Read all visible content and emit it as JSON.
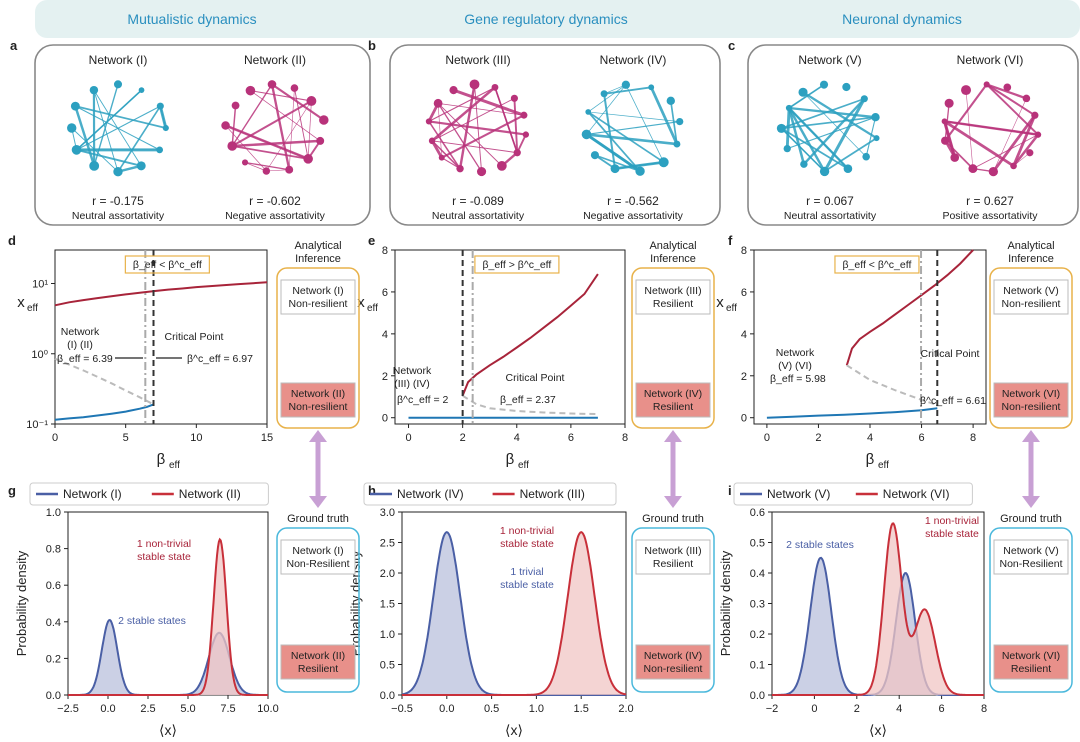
{
  "colors": {
    "teal": "#2ca0c0",
    "magenta": "#b8327a",
    "red": "#a8243a",
    "blue": "#1f77b4",
    "kdeBlue": "#4a5fa5",
    "kdeRed": "#c8303a",
    "gold": "#e8b24a",
    "sky": "#4ab8dc",
    "arrow": "#c8a0d4",
    "banner": "#e4f1f1",
    "bannerText": "#2a8fbf",
    "pink": "#e8908a",
    "dash": "#333333",
    "gray": "#aaaaaa"
  },
  "column_headers": [
    "Mutualistic dynamics",
    "Gene regulatory dynamics",
    "Neuronal dynamics"
  ],
  "panel_letters": {
    "a": "a",
    "b": "b",
    "c": "c",
    "d": "d",
    "e": "e",
    "f": "f",
    "g": "g",
    "h": "h",
    "i": "i"
  },
  "networks": [
    {
      "name": "Network (I)",
      "r": "r = -0.175",
      "desc": "Neutral assortativity",
      "color": "teal"
    },
    {
      "name": "Network (II)",
      "r": "r = -0.602",
      "desc": "Negative assortativity",
      "color": "magenta"
    },
    {
      "name": "Network (III)",
      "r": "r = -0.089",
      "desc": "Neutral assortativity",
      "color": "magenta"
    },
    {
      "name": "Network (IV)",
      "r": "r = -0.562",
      "desc": "Negative assortativity",
      "color": "teal"
    },
    {
      "name": "Network (V)",
      "r": "r = 0.067",
      "desc": "Neutral assortativity",
      "color": "teal"
    },
    {
      "name": "Network (VI)",
      "r": "r = 0.627",
      "desc": "Positive assortativity",
      "color": "magenta"
    }
  ],
  "side_boxes": [
    {
      "header": "Analytical Inference",
      "top": [
        "Network (I)",
        "Non-resilient"
      ],
      "bottom": [
        "Network (II)",
        "Non-resilient"
      ],
      "style": "gold"
    },
    {
      "header": "Ground truth",
      "top": [
        "Network (I)",
        "Non-Resilient"
      ],
      "bottom": [
        "Network (II)",
        "Resilient"
      ],
      "style": "sky"
    },
    {
      "header": "Analytical Inference",
      "top": [
        "Network (III)",
        "Resilient"
      ],
      "bottom": [
        "Network (IV)",
        "Resilient"
      ],
      "style": "gold"
    },
    {
      "header": "Ground truth",
      "top": [
        "Network (III)",
        "Resilient"
      ],
      "bottom": [
        "Network (IV)",
        "Non-resilient"
      ],
      "style": "sky"
    },
    {
      "header": "Analytical Inference",
      "top": [
        "Network (V)",
        "Non-resilient"
      ],
      "bottom": [
        "Network (VI)",
        "Non-resilient"
      ],
      "style": "gold"
    },
    {
      "header": "Ground truth",
      "top": [
        "Network (V)",
        "Non-Resilient"
      ],
      "bottom": [
        "Network (VI)",
        "Resilient"
      ],
      "style": "sky"
    }
  ],
  "chart_data": [
    {
      "panel": "d",
      "type": "line",
      "yscale": "log",
      "xlabel": "β_eff",
      "ylabel": "x_eff",
      "xlim": [
        0,
        15
      ],
      "ylim": [
        0.1,
        30
      ],
      "xticks": [
        0,
        5,
        10,
        15
      ],
      "yticks": [
        0.1,
        1,
        10
      ],
      "ytick_labels": [
        "10⁻¹",
        "10⁰",
        "10¹"
      ],
      "condition": "β_eff < β^c_eff",
      "series": [
        {
          "role": "upper",
          "x": [
            0,
            1,
            2,
            3,
            4,
            5,
            6,
            7,
            8,
            9,
            10,
            11,
            12,
            13,
            14,
            15
          ],
          "y": [
            4.9,
            5.4,
            5.8,
            6.2,
            6.6,
            7.0,
            7.4,
            7.8,
            8.2,
            8.5,
            8.9,
            9.2,
            9.5,
            9.8,
            10.1,
            10.4
          ]
        },
        {
          "role": "lower",
          "x": [
            0,
            1,
            2,
            3,
            4,
            5,
            6,
            6.5,
            6.97
          ],
          "y": [
            0.115,
            0.12,
            0.125,
            0.132,
            0.14,
            0.15,
            0.165,
            0.175,
            0.19
          ]
        },
        {
          "role": "unstable",
          "x": [
            0,
            1,
            2,
            3,
            4,
            5,
            6,
            6.97
          ],
          "y": [
            0.85,
            0.7,
            0.58,
            0.47,
            0.38,
            0.3,
            0.24,
            0.19
          ]
        }
      ],
      "vlines": [
        {
          "x": 6.39,
          "style": "dashdot"
        },
        {
          "x": 6.97,
          "style": "dashed"
        }
      ],
      "annotations": [
        "Network\n(I) (II)",
        "β_eff = 6.39",
        "Critical Point",
        "β^c_eff = 6.97"
      ]
    },
    {
      "panel": "e",
      "type": "line",
      "xlabel": "β_eff",
      "ylabel": "x_eff",
      "xlim": [
        -0.5,
        8
      ],
      "ylim": [
        -0.3,
        8
      ],
      "xticks": [
        0,
        2,
        4,
        6,
        8
      ],
      "yticks": [
        0,
        2,
        4,
        6,
        8
      ],
      "condition": "β_eff > β^c_eff",
      "series": [
        {
          "role": "upper",
          "x": [
            2,
            2.2,
            2.5,
            3,
            3.5,
            4,
            4.5,
            5,
            5.5,
            6,
            6.5,
            7
          ],
          "y": [
            1.05,
            1.7,
            2.05,
            2.5,
            2.9,
            3.35,
            3.8,
            4.3,
            4.8,
            5.35,
            5.9,
            6.85
          ]
        },
        {
          "role": "lower",
          "x": [
            0,
            7
          ],
          "y": [
            0,
            0
          ]
        },
        {
          "role": "unstable",
          "x": [
            2,
            2.5,
            3,
            4,
            5,
            6,
            7
          ],
          "y": [
            1.05,
            0.65,
            0.45,
            0.32,
            0.25,
            0.2,
            0.17
          ]
        }
      ],
      "vlines": [
        {
          "x": 2,
          "style": "dashed"
        },
        {
          "x": 2.37,
          "style": "dashdot"
        }
      ],
      "annotations": [
        "Network\n(III) (IV)",
        "β^c_eff = 2",
        "β_eff = 2.37",
        "Critical Point"
      ]
    },
    {
      "panel": "f",
      "type": "line",
      "xlabel": "β_eff",
      "ylabel": "x_eff",
      "xlim": [
        -0.5,
        8.5
      ],
      "ylim": [
        -0.3,
        8
      ],
      "xticks": [
        0,
        2,
        4,
        6,
        8
      ],
      "yticks": [
        0,
        2,
        4,
        6,
        8
      ],
      "condition": "β_eff < β^c_eff",
      "series": [
        {
          "role": "upper",
          "x": [
            3.1,
            3.3,
            3.6,
            4,
            4.5,
            5,
            5.5,
            6,
            6.5,
            7,
            7.5,
            8
          ],
          "y": [
            2.5,
            3.3,
            3.75,
            4.1,
            4.5,
            4.95,
            5.4,
            5.85,
            6.3,
            6.8,
            7.35,
            8.0
          ]
        },
        {
          "role": "lower",
          "x": [
            0,
            1,
            2,
            3,
            4,
            5,
            6,
            6.61
          ],
          "y": [
            0,
            0.05,
            0.1,
            0.14,
            0.2,
            0.27,
            0.36,
            0.45
          ]
        },
        {
          "role": "unstable",
          "x": [
            3.1,
            4,
            5,
            6,
            6.61
          ],
          "y": [
            2.5,
            1.8,
            1.3,
            0.85,
            0.6
          ]
        }
      ],
      "vlines": [
        {
          "x": 5.98,
          "style": "dashdot"
        },
        {
          "x": 6.61,
          "style": "dashed"
        }
      ],
      "annotations": [
        "Network\n(V) (VI)",
        "β_eff = 5.98",
        "Critical Point",
        "β^c_eff = 6.61"
      ]
    },
    {
      "panel": "g",
      "type": "area",
      "xlabel": "⟨x⟩",
      "ylabel": "Probability density",
      "xlim": [
        -2.5,
        10
      ],
      "ylim": [
        0,
        1.0
      ],
      "xticks": [
        -2.5,
        0.0,
        2.5,
        5.0,
        7.5,
        10.0
      ],
      "yticks": [
        0,
        0.2,
        0.4,
        0.6,
        0.8,
        1.0
      ],
      "series": [
        {
          "name": "Network (I)",
          "peaks": [
            {
              "mu": 0.1,
              "sigma": 0.48,
              "h": 0.41
            },
            {
              "mu": 6.95,
              "sigma": 0.65,
              "h": 0.34
            }
          ]
        },
        {
          "name": "Network (II)",
          "peaks": [
            {
              "mu": 7.0,
              "sigma": 0.4,
              "h": 0.85
            }
          ]
        }
      ],
      "annotations": [
        "1 non-trivial\nstable state",
        "2 stable states"
      ]
    },
    {
      "panel": "h",
      "type": "area",
      "xlabel": "⟨x⟩",
      "ylabel": "Probability density",
      "xlim": [
        -0.5,
        2.0
      ],
      "ylim": [
        0,
        3.0
      ],
      "xticks": [
        -0.5,
        0.0,
        0.5,
        1.0,
        1.5,
        2.0
      ],
      "yticks": [
        0,
        0.5,
        1.0,
        1.5,
        2.0,
        2.5,
        3.0
      ],
      "series": [
        {
          "name": "Network (IV)",
          "peaks": [
            {
              "mu": 0.0,
              "sigma": 0.15,
              "h": 2.67
            }
          ]
        },
        {
          "name": "Network (III)",
          "peaks": [
            {
              "mu": 1.5,
              "sigma": 0.15,
              "h": 2.67
            }
          ]
        }
      ],
      "annotations": [
        "1 non-trivial\nstable state",
        "1 trivial\nstable state"
      ]
    },
    {
      "panel": "i",
      "type": "area",
      "xlabel": "⟨x⟩",
      "ylabel": "Probability density",
      "xlim": [
        -2,
        8
      ],
      "ylim": [
        0,
        0.6
      ],
      "xticks": [
        -2,
        0,
        2,
        4,
        6,
        8
      ],
      "yticks": [
        0,
        0.1,
        0.2,
        0.3,
        0.4,
        0.5,
        0.6
      ],
      "series": [
        {
          "name": "Network (V)",
          "peaks": [
            {
              "mu": 0.3,
              "sigma": 0.5,
              "h": 0.45
            },
            {
              "mu": 4.3,
              "sigma": 0.45,
              "h": 0.4
            }
          ]
        },
        {
          "name": "Network (VI)",
          "peaks": [
            {
              "mu": 3.7,
              "sigma": 0.42,
              "h": 0.56
            },
            {
              "mu": 5.2,
              "sigma": 0.5,
              "h": 0.28
            }
          ]
        }
      ],
      "annotations": [
        "1 non-trivial\nstable state",
        "2 stable states"
      ]
    }
  ]
}
